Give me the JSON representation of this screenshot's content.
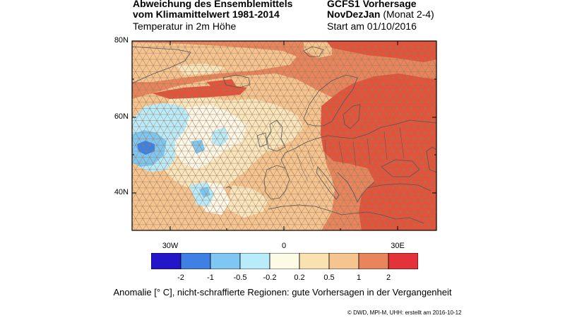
{
  "header": {
    "title_line1": "Abweichung des Ensemblemittels",
    "title_line2": "vom Klimamittelwert 1981-2014",
    "subtitle": "Temperatur in 2m Höhe",
    "model": "GCFS1 Vorhersage",
    "season_bold": "NovDezJan",
    "season_months": " (Monat 2-4)",
    "start_date": "Start am 01/10/2016"
  },
  "map": {
    "lat_labels": [
      "80N",
      "60N",
      "40N"
    ],
    "lon_labels": [
      "30W",
      "0",
      "30E"
    ],
    "extent": {
      "lon": [
        -40,
        40
      ],
      "lat": [
        30,
        80
      ]
    },
    "colors": {
      "background_anomaly": "#e8855c",
      "strong_warm": "#e35239",
      "mild_warm": "#f6c58f",
      "weak_warm": "#f9e6bc",
      "neutral": "#fdf8e8",
      "weak_cold": "#b9ecfb",
      "cold": "#7dc7f2",
      "very_cold": "#3b80e4",
      "hatch": "#9a7a62",
      "coast": "#555555"
    }
  },
  "colorbar": {
    "colors": [
      "#2316c9",
      "#3e80e4",
      "#7dc7f2",
      "#b9ecfb",
      "#fdfae6",
      "#f9e2b0",
      "#f6c58f",
      "#e8855c",
      "#e4323a"
    ],
    "labels": [
      "-2",
      "-1",
      "-0.5",
      "-0.2",
      "0.2",
      "0.5",
      "1",
      "2"
    ]
  },
  "caption": "Anomalie [° C], nicht-schraffierte Regionen: gute Vorhersagen in der Vergangenheit",
  "credit": "© DWD, MPI-M, UHH: erstellt am 2016-10-12"
}
